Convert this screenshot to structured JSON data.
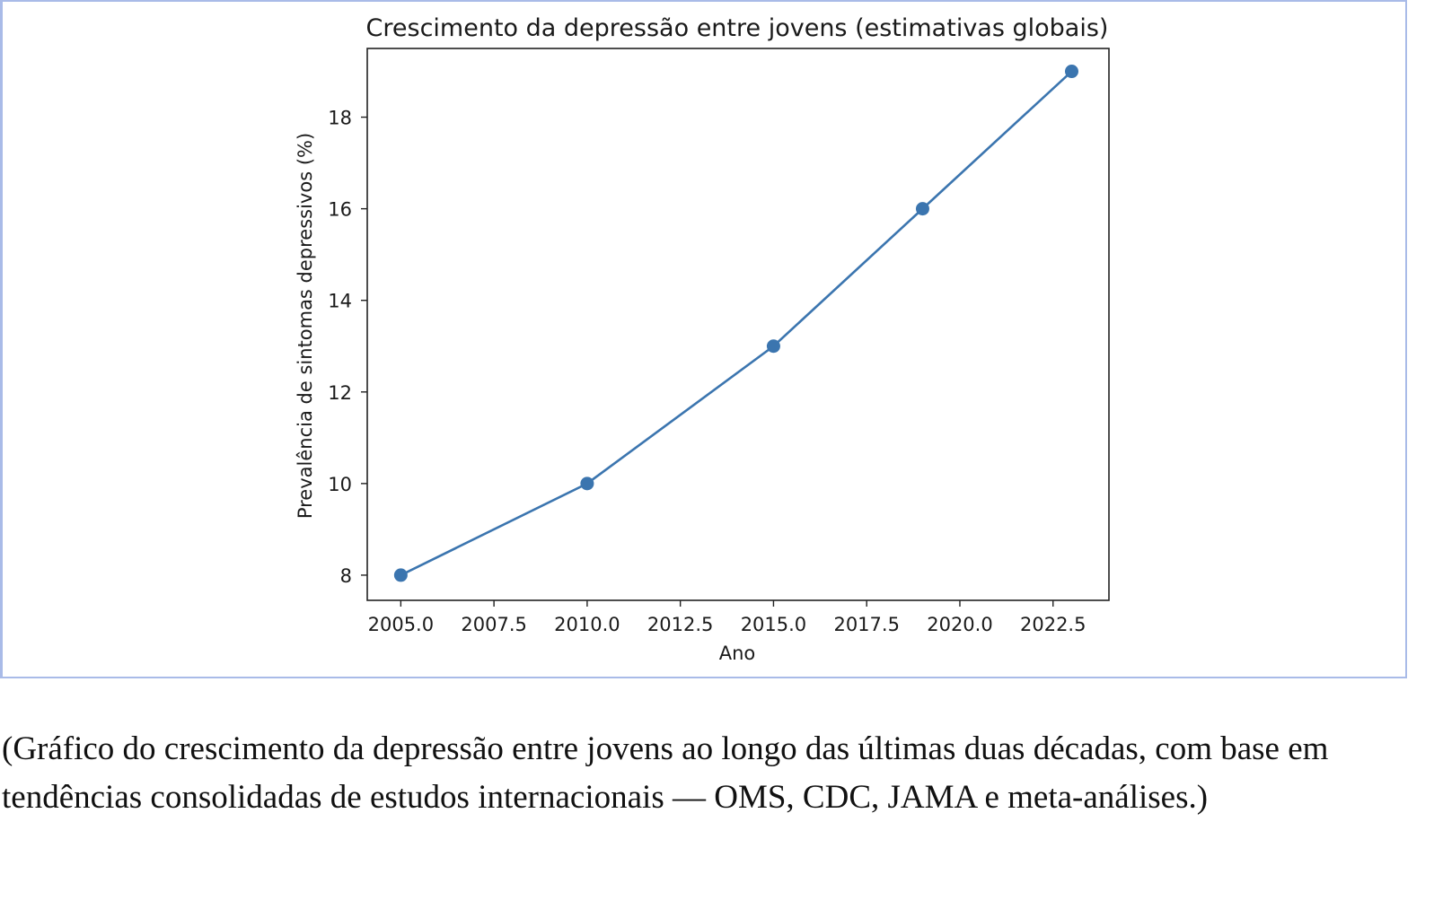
{
  "chart_data": {
    "type": "line",
    "title": "Crescimento da depressão entre jovens (estimativas globais)",
    "xlabel": "Ano",
    "ylabel": "Prevalência de sintomas depressivos (%)",
    "x": [
      2005,
      2010,
      2015,
      2019,
      2023
    ],
    "values": [
      8,
      10,
      13,
      16,
      19
    ],
    "xlim": [
      2004.1,
      2024.0
    ],
    "ylim": [
      7.45,
      19.5
    ],
    "xticks": [
      "2005.0",
      "2007.5",
      "2010.0",
      "2012.5",
      "2015.0",
      "2017.5",
      "2020.0",
      "2022.5"
    ],
    "yticks": [
      "8",
      "10",
      "12",
      "14",
      "16",
      "18"
    ],
    "grid": false,
    "marker": "circle",
    "color": "#3b75af"
  },
  "caption": "(Gráfico do crescimento da depressão  entre jovens ao longo das últimas duas décadas, com base em tendências consolidadas de estudos internacionais — OMS, CDC, JAMA e meta-análises.)"
}
